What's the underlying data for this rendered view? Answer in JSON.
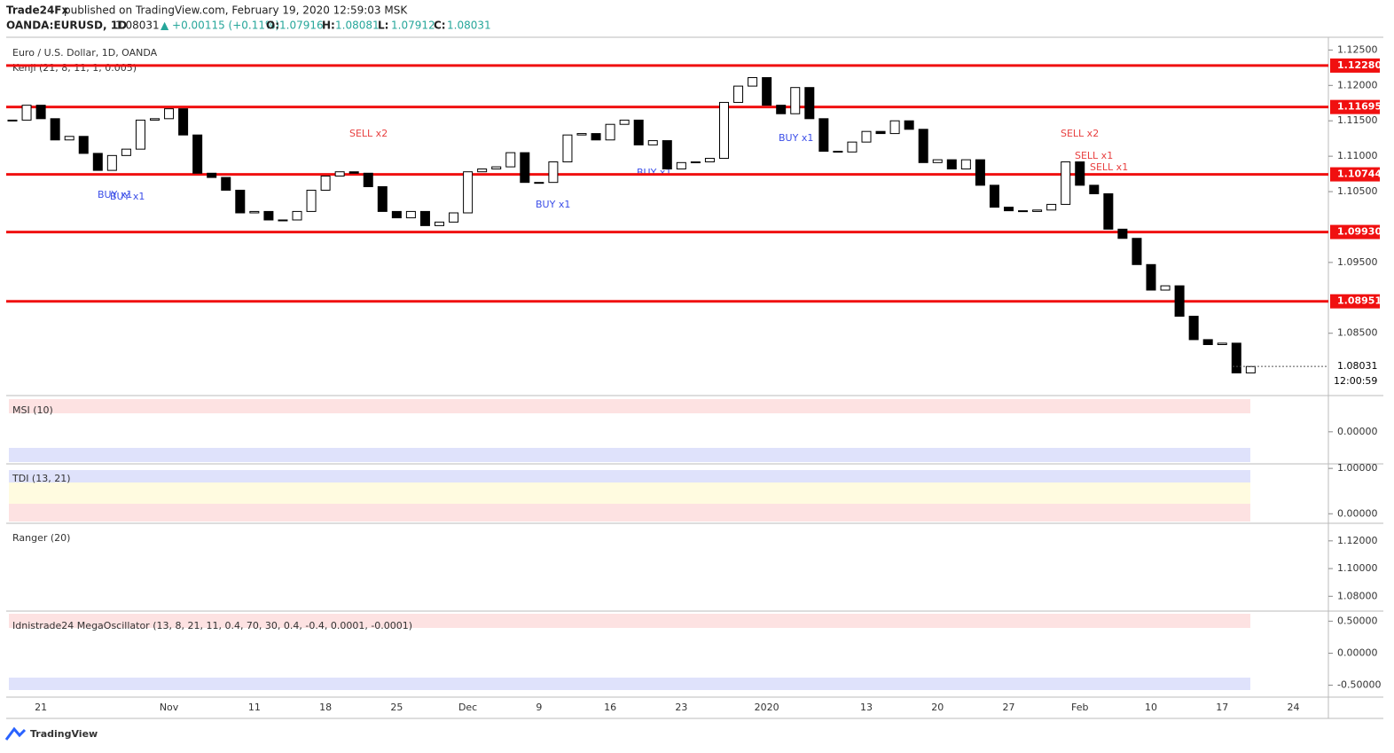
{
  "header": {
    "publisher": "Trade24Fx",
    "published": "published on TradingView.com, February 19, 2020 12:59:03 MSK",
    "symbol": "OANDA:EURUSD, 1D",
    "price": "1.08031",
    "change": "▲ +0.00115 (+0.11%)",
    "ohlc": [
      {
        "label": "O:",
        "value": "1.07916"
      },
      {
        "label": "H:",
        "value": "1.08081"
      },
      {
        "label": "L:",
        "value": "1.07912"
      },
      {
        "label": "C:",
        "value": "1.08031"
      }
    ],
    "logo": "TradingView"
  },
  "chart_data": [
    {
      "type": "candlestick",
      "title": "Euro / U.S. Dollar, 1D, OANDA",
      "indicator": "Kenji (21, 8, 11, 1, 0.005)",
      "categories": [
        null,
        null,
        "21",
        null,
        null,
        null,
        null,
        null,
        null,
        null,
        null,
        "Nov",
        null,
        null,
        null,
        null,
        null,
        "11",
        null,
        null,
        null,
        null,
        "18",
        null,
        null,
        null,
        null,
        "25",
        null,
        null,
        null,
        null,
        "Dec",
        null,
        null,
        null,
        null,
        "9",
        null,
        null,
        null,
        null,
        "16",
        null,
        null,
        null,
        null,
        "23",
        null,
        null,
        null,
        null,
        null,
        "2020",
        null,
        null,
        null,
        null,
        null,
        null,
        "13",
        null,
        null,
        null,
        null,
        "20",
        null,
        null,
        null,
        null,
        "27",
        null,
        null,
        null,
        null,
        "Feb",
        null,
        null,
        null,
        null,
        "10",
        null,
        null,
        null,
        null,
        "17",
        null,
        null,
        null,
        null,
        "24"
      ],
      "values": [
        1.1151,
        1.1172,
        1.1153,
        1.1123,
        1.1128,
        1.1104,
        1.108,
        1.1101,
        1.111,
        1.1151,
        1.1153,
        1.1167,
        1.113,
        1.1076,
        1.107,
        1.1052,
        1.102,
        1.1022,
        1.101,
        1.101,
        1.1022,
        1.1052,
        1.1072,
        1.1078,
        1.1076,
        1.1057,
        1.1022,
        1.1013,
        1.1022,
        1.1002,
        1.1007,
        1.102,
        1.1078,
        1.1082,
        1.1085,
        1.1105,
        1.1063,
        1.1063,
        1.1092,
        1.113,
        1.1132,
        1.1123,
        1.1145,
        1.1151,
        1.1116,
        1.1122,
        1.1082,
        1.1091,
        1.1092,
        1.1097,
        1.1176,
        1.1199,
        1.1211,
        1.1172,
        1.116,
        1.1197,
        1.1153,
        1.1107,
        1.1106,
        1.112,
        1.1135,
        1.1132,
        1.115,
        1.1138,
        1.1091,
        1.1095,
        1.1082,
        1.1095,
        1.1059,
        1.1028,
        1.1023,
        1.1022,
        1.1024,
        1.1032,
        1.1092,
        1.1059,
        1.1047,
        1.0997,
        1.0984,
        1.0947,
        1.0911,
        1.0917,
        1.0874,
        1.0841,
        1.0834,
        1.0836,
        1.0794,
        1.0803,
        null,
        null,
        null
      ],
      "up_color": "#ffffff",
      "down_color": "#000000",
      "level_color": "#f01010",
      "ylim": [
        1.0762,
        1.1268
      ],
      "yticks": [
        {
          "value": 1.125,
          "label": "1.12500"
        },
        {
          "value": 1.12,
          "label": "1.12000"
        },
        {
          "value": 1.115,
          "label": "1.11500"
        },
        {
          "value": 1.11,
          "label": "1.11000"
        },
        {
          "value": 1.105,
          "label": "1.10500"
        },
        {
          "value": 1.095,
          "label": "1.09500"
        },
        {
          "value": 1.085,
          "label": "1.08500"
        }
      ],
      "levels": [
        {
          "value": 1.1228,
          "label": "1.12280"
        },
        {
          "value": 1.11695,
          "label": "1.11695"
        },
        {
          "value": 1.10744,
          "label": "1.10744"
        },
        {
          "value": 1.0993,
          "label": "1.09930"
        },
        {
          "value": 1.08951,
          "label": "1.08951"
        }
      ],
      "last_price": {
        "value": 1.08031,
        "label": "1.08031"
      },
      "countdown": "12:00:59",
      "annotations": [
        "BUY x1",
        "BUY x1",
        "SELL x2",
        "BUY x1",
        "BUY x1",
        "BUY x1",
        "SELL x2",
        "SELL x1",
        "SELL x1"
      ]
    },
    {
      "type": "panel",
      "title": "MSI (10)",
      "ylim": [
        -1,
        1.13
      ],
      "yticks": [
        {
          "value": 0,
          "label": "0.00000"
        }
      ]
    },
    {
      "type": "panel",
      "title": "TDI (13, 21)",
      "ylim": [
        -0.21,
        1.1
      ],
      "yticks": [
        {
          "value": 1,
          "label": "1.00000"
        },
        {
          "value": 0,
          "label": "0.00000"
        }
      ]
    },
    {
      "type": "panel",
      "title": "Ranger (20)",
      "ylim": [
        1.0693,
        1.1327
      ],
      "yticks": [
        {
          "value": 1.12,
          "label": "1.12000"
        },
        {
          "value": 1.1,
          "label": "1.10000"
        },
        {
          "value": 1.08,
          "label": "1.08000"
        }
      ]
    },
    {
      "type": "panel",
      "title": "Idnistrade24 MegaOscillator (13, 8, 21, 11, 0.4, 70, 30, 0.4, -0.4, 0.0001, -0.0001)",
      "ylim": [
        -0.686,
        0.657
      ],
      "yticks": [
        {
          "value": 0.5,
          "label": "0.50000"
        },
        {
          "value": 0,
          "label": "0.00000"
        },
        {
          "value": -0.5,
          "label": "-0.50000"
        }
      ]
    }
  ]
}
